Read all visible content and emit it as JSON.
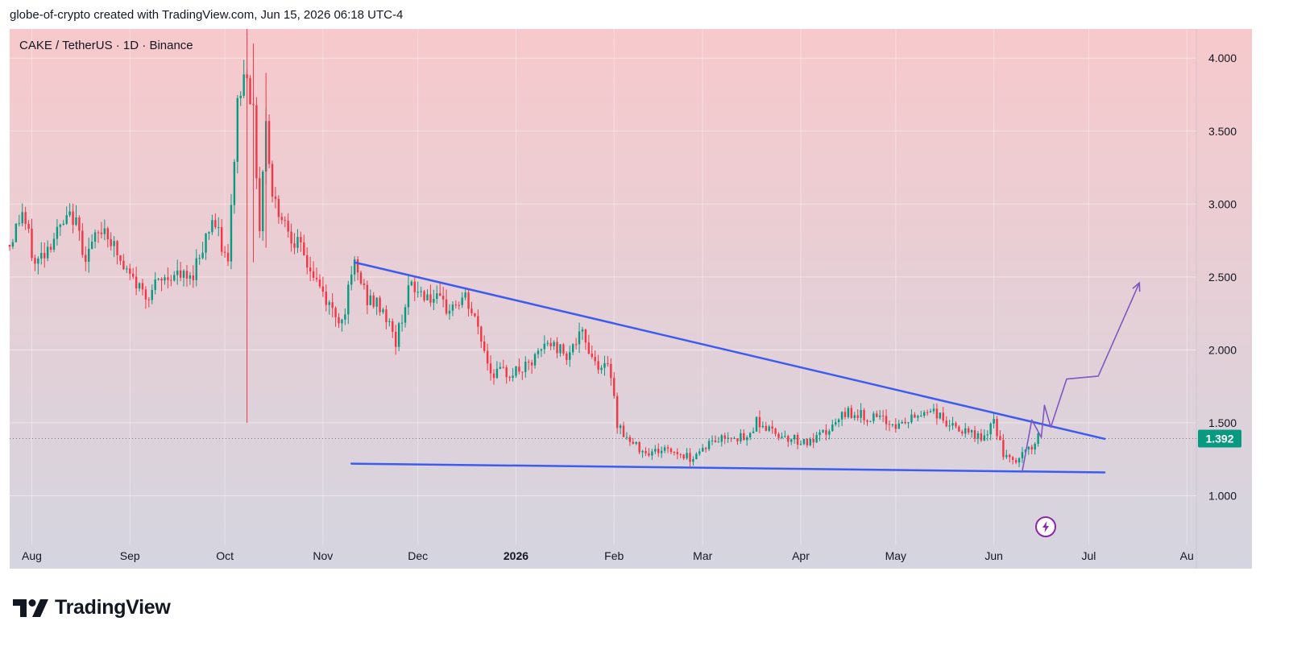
{
  "header": {
    "text": "globe-of-crypto created with TradingView.com, Jun 15, 2026 06:18 UTC-4"
  },
  "footer": {
    "brand": "TradingView"
  },
  "colors": {
    "up": "#089981",
    "down": "#f23645",
    "trendline": "#3d5bf0",
    "projection": "#7e57c2",
    "bg_top": "#f7c9cc",
    "bg_bottom": "#d4d5e0"
  },
  "chart_data": {
    "type": "candlestick",
    "symbol_label": "CAKE / TetherUS · 1D · Binance",
    "current_price": "1.392",
    "y_ticks": [
      "4.000",
      "3.500",
      "3.000",
      "2.500",
      "2.000",
      "1.500",
      "1.000"
    ],
    "x_ticks": [
      {
        "label": "Aug",
        "date": "2025-08-01"
      },
      {
        "label": "Sep",
        "date": "2025-09-01"
      },
      {
        "label": "Oct",
        "date": "2025-10-01"
      },
      {
        "label": "Nov",
        "date": "2025-11-01"
      },
      {
        "label": "Dec",
        "date": "2025-12-01"
      },
      {
        "label": "2026",
        "date": "2026-01-01",
        "bold": true
      },
      {
        "label": "Feb",
        "date": "2026-02-01"
      },
      {
        "label": "Mar",
        "date": "2026-03-01"
      },
      {
        "label": "Apr",
        "date": "2026-04-01"
      },
      {
        "label": "May",
        "date": "2026-05-01"
      },
      {
        "label": "Jun",
        "date": "2026-06-01"
      },
      {
        "label": "Jul",
        "date": "2026-07-01"
      },
      {
        "label": "Au",
        "date": "2026-08-01"
      }
    ],
    "ylim": [
      0.5,
      4.2
    ],
    "xlim": [
      "2025-07-25",
      "2026-08-04"
    ],
    "price_path": [
      [
        "2025-07-25",
        2.72
      ],
      [
        "2025-07-29",
        2.95
      ],
      [
        "2025-08-02",
        2.58
      ],
      [
        "2025-08-08",
        2.78
      ],
      [
        "2025-08-14",
        2.92
      ],
      [
        "2025-08-18",
        2.65
      ],
      [
        "2025-08-24",
        2.85
      ],
      [
        "2025-08-30",
        2.55
      ],
      [
        "2025-09-06",
        2.38
      ],
      [
        "2025-09-14",
        2.52
      ],
      [
        "2025-09-20",
        2.48
      ],
      [
        "2025-09-27",
        2.9
      ],
      [
        "2025-10-02",
        2.58
      ],
      [
        "2025-10-05",
        3.7
      ],
      [
        "2025-10-08",
        3.95
      ],
      [
        "2025-10-10",
        3.6
      ],
      [
        "2025-10-12",
        2.85
      ],
      [
        "2025-10-14",
        3.6
      ],
      [
        "2025-10-16",
        3.05
      ],
      [
        "2025-10-22",
        2.8
      ],
      [
        "2025-10-28",
        2.55
      ],
      [
        "2025-11-03",
        2.3
      ],
      [
        "2025-11-07",
        2.2
      ],
      [
        "2025-11-11",
        2.58
      ],
      [
        "2025-11-15",
        2.35
      ],
      [
        "2025-11-20",
        2.28
      ],
      [
        "2025-11-24",
        2.05
      ],
      [
        "2025-11-28",
        2.42
      ],
      [
        "2025-12-04",
        2.38
      ],
      [
        "2025-12-10",
        2.28
      ],
      [
        "2025-12-16",
        2.35
      ],
      [
        "2025-12-20",
        2.15
      ],
      [
        "2025-12-24",
        1.85
      ],
      [
        "2025-12-30",
        1.84
      ],
      [
        "2026-01-05",
        1.88
      ],
      [
        "2026-01-11",
        2.05
      ],
      [
        "2026-01-17",
        1.98
      ],
      [
        "2026-01-22",
        2.1
      ],
      [
        "2026-01-26",
        1.92
      ],
      [
        "2026-01-31",
        1.85
      ],
      [
        "2026-02-02",
        1.5
      ],
      [
        "2026-02-06",
        1.36
      ],
      [
        "2026-02-12",
        1.3
      ],
      [
        "2026-02-18",
        1.32
      ],
      [
        "2026-02-25",
        1.26
      ],
      [
        "2026-03-03",
        1.36
      ],
      [
        "2026-03-10",
        1.42
      ],
      [
        "2026-03-15",
        1.38
      ],
      [
        "2026-03-18",
        1.52
      ],
      [
        "2026-03-22",
        1.45
      ],
      [
        "2026-03-28",
        1.4
      ],
      [
        "2026-04-04",
        1.36
      ],
      [
        "2026-04-10",
        1.45
      ],
      [
        "2026-04-16",
        1.58
      ],
      [
        "2026-04-20",
        1.55
      ],
      [
        "2026-04-26",
        1.52
      ],
      [
        "2026-05-02",
        1.48
      ],
      [
        "2026-05-08",
        1.55
      ],
      [
        "2026-05-12",
        1.6
      ],
      [
        "2026-05-18",
        1.48
      ],
      [
        "2026-05-24",
        1.42
      ],
      [
        "2026-05-30",
        1.4
      ],
      [
        "2026-06-01",
        1.52
      ],
      [
        "2026-06-04",
        1.28
      ],
      [
        "2026-06-07",
        1.22
      ],
      [
        "2026-06-10",
        1.28
      ],
      [
        "2026-06-14",
        1.36
      ],
      [
        "2026-06-15",
        1.392
      ]
    ],
    "upper_trendline": [
      [
        "2025-11-11",
        2.6
      ],
      [
        "2026-07-06",
        1.39
      ]
    ],
    "lower_trendline": [
      [
        "2025-11-10",
        1.22
      ],
      [
        "2026-07-06",
        1.16
      ]
    ],
    "projection_path": [
      [
        "2026-06-10",
        1.17
      ],
      [
        "2026-06-13",
        1.52
      ],
      [
        "2026-06-16",
        1.4
      ],
      [
        "2026-06-17",
        1.62
      ],
      [
        "2026-06-19",
        1.47
      ],
      [
        "2026-06-24",
        1.8
      ],
      [
        "2026-07-04",
        1.82
      ],
      [
        "2026-07-17",
        2.46
      ]
    ]
  }
}
